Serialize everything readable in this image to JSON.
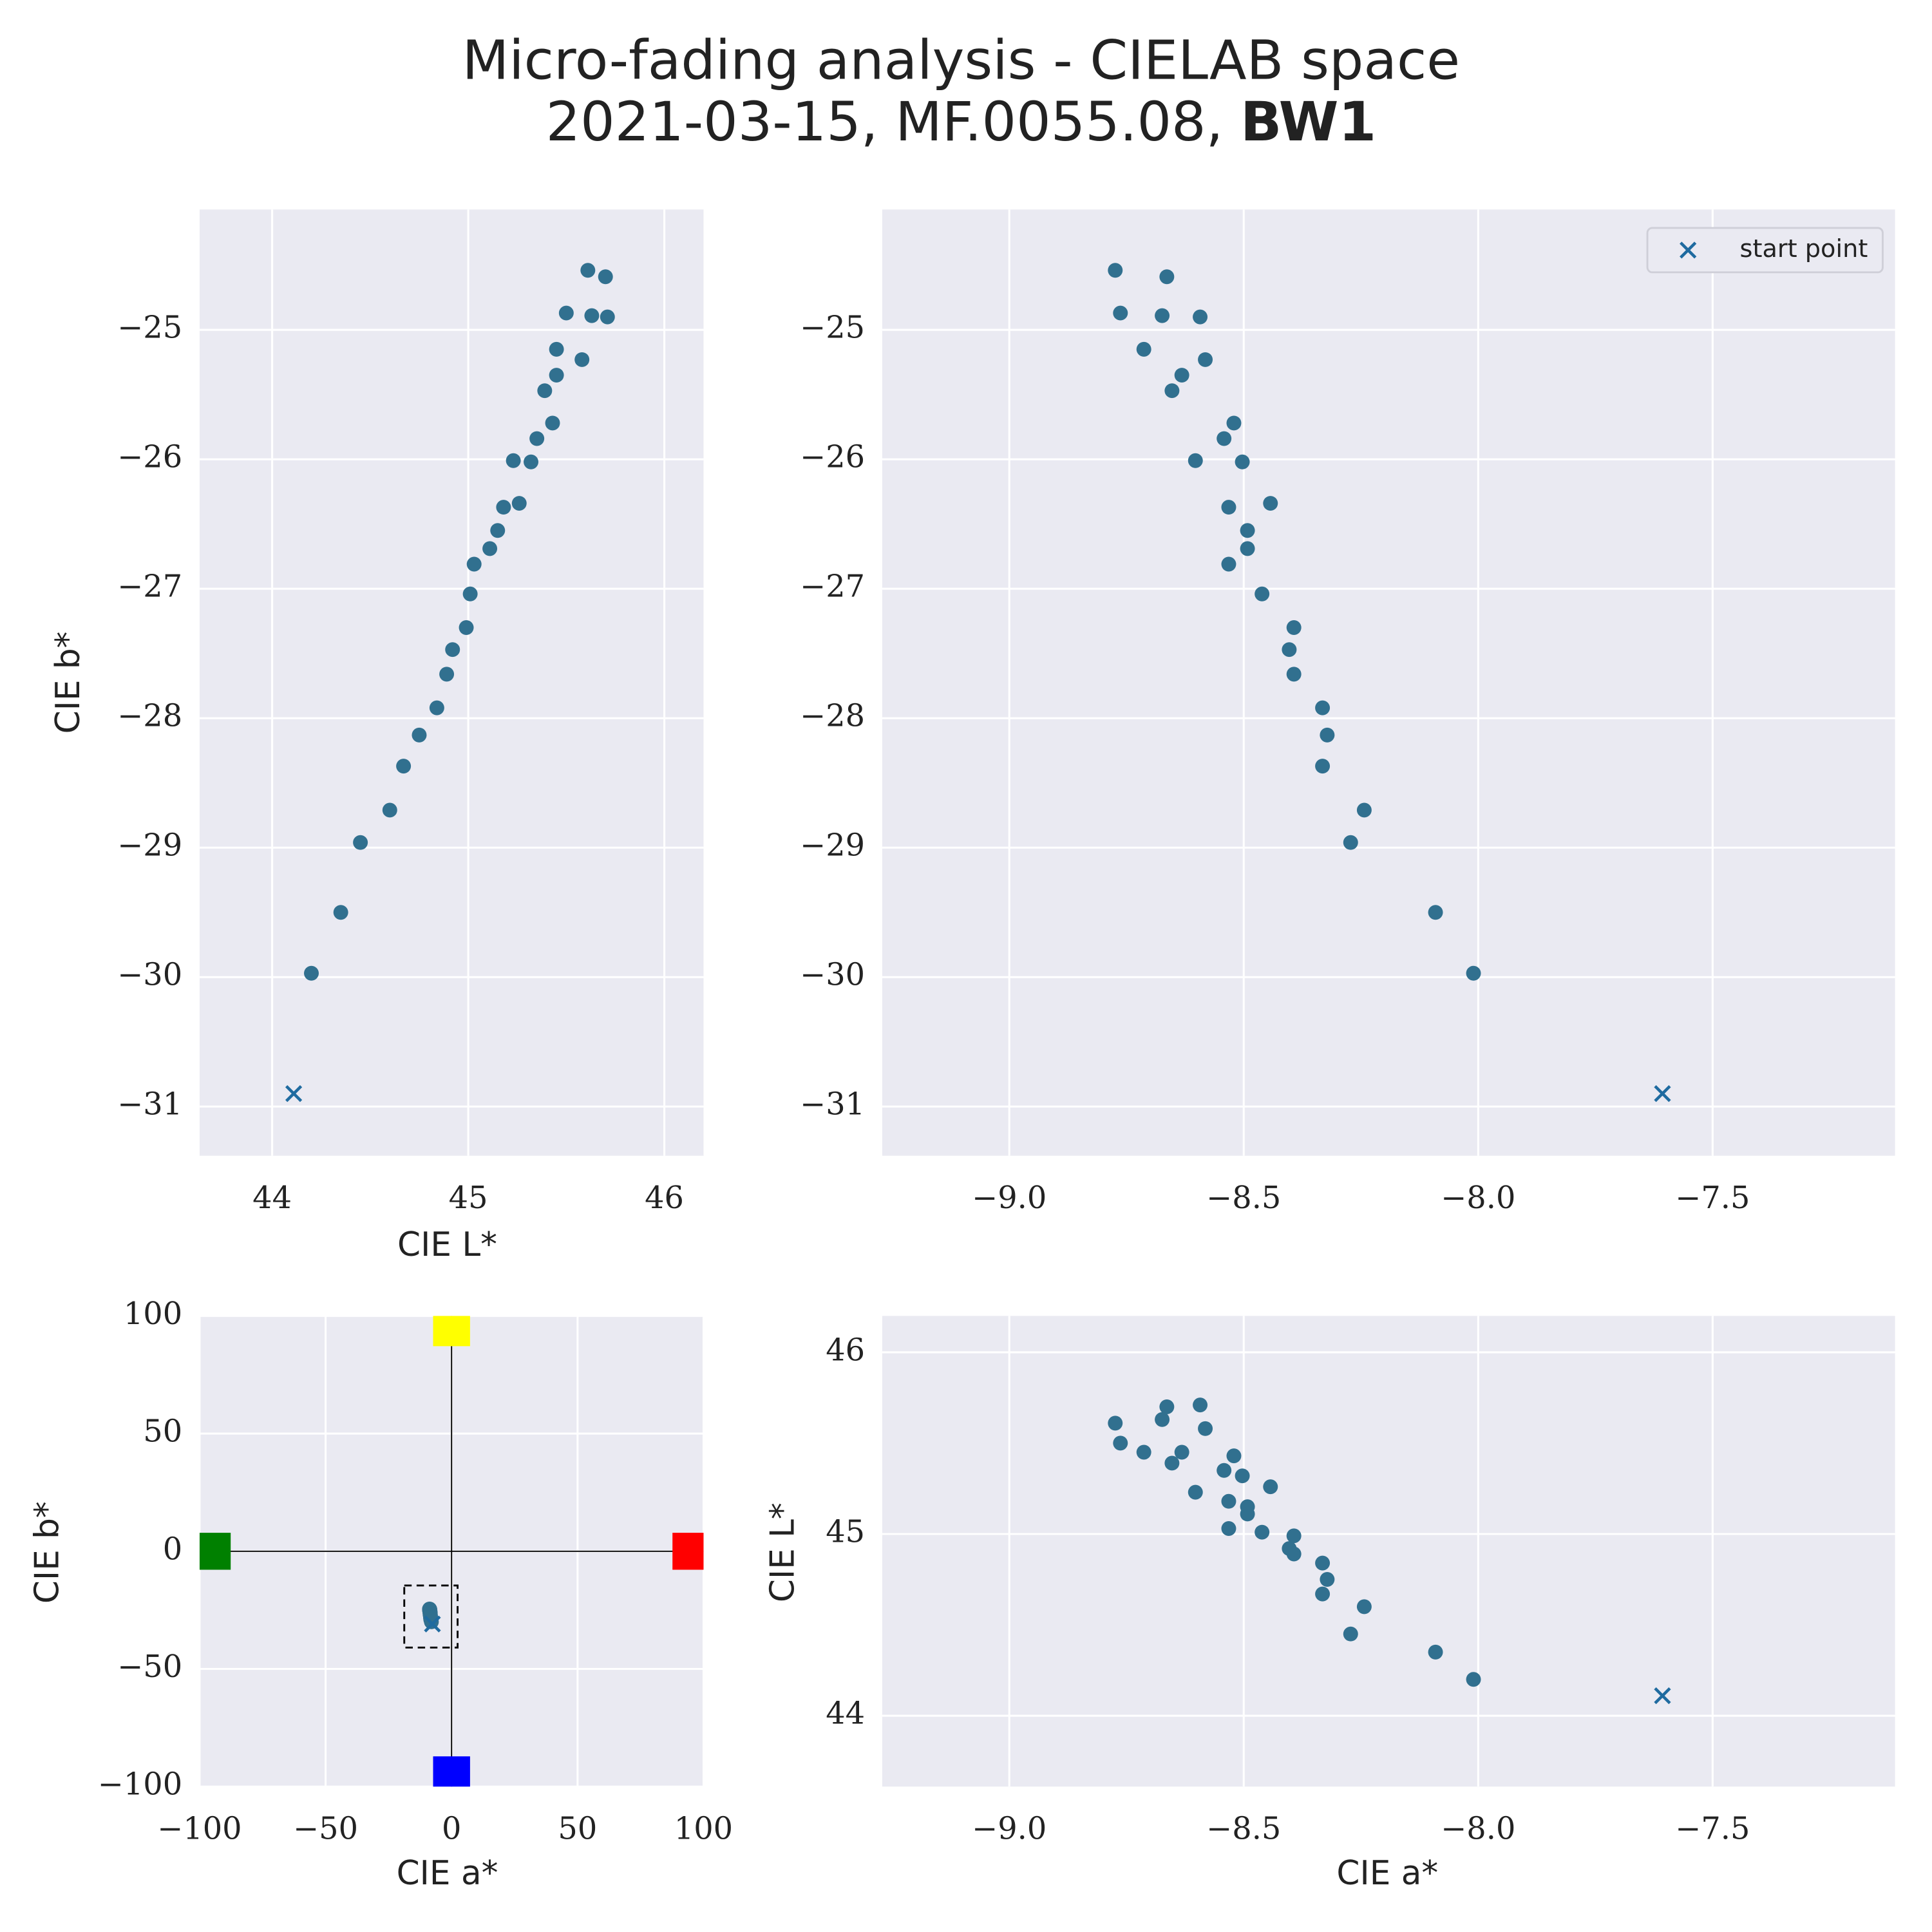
{
  "title": "Micro-fading analysis - CIELAB space",
  "subtitle": "2021-03-15, MF.0055.08,",
  "subtitle_bold": "BW1",
  "chart_data": [
    {
      "type": "scatter",
      "xlabel": "CIE L*",
      "ylabel": "CIE b*",
      "xlim": [
        43.63,
        46.2
      ],
      "ylim": [
        -31.38,
        -24.07
      ],
      "xticks": [
        44,
        45,
        46
      ],
      "yticks": [
        {
          "value": -31,
          "label": "−31"
        },
        {
          "value": -30,
          "label": "−30"
        },
        {
          "value": -29,
          "label": "−29"
        },
        {
          "value": -28,
          "label": "−28"
        },
        {
          "value": -27,
          "label": "−27"
        },
        {
          "value": -26,
          "label": "−26"
        },
        {
          "value": -25,
          "label": "−25"
        }
      ],
      "grid": true,
      "series": [
        {
          "marker": "o",
          "color": "#31708f",
          "x": [
            45.61,
            45.7,
            45.5,
            45.63,
            45.71,
            45.45,
            45.45,
            45.58,
            45.39,
            45.43,
            45.35,
            45.23,
            45.32,
            45.26,
            45.18,
            45.15,
            45.11,
            45.03,
            45.01,
            44.99,
            44.92,
            44.89,
            44.84,
            44.75,
            44.67,
            44.6,
            44.45,
            44.35,
            44.2
          ],
          "values": [
            -24.54,
            -24.59,
            -24.87,
            -24.89,
            -24.9,
            -25.15,
            -25.35,
            -25.23,
            -25.47,
            -25.72,
            -25.84,
            -26.01,
            -26.02,
            -26.34,
            -26.37,
            -26.55,
            -26.69,
            -26.81,
            -27.04,
            -27.3,
            -27.47,
            -27.66,
            -27.92,
            -28.13,
            -28.37,
            -28.71,
            -28.96,
            -29.5,
            -29.97
          ]
        },
        {
          "marker": "x",
          "color": "#1f6ba0",
          "x": [
            44.11
          ],
          "values": [
            -30.9
          ]
        }
      ]
    },
    {
      "type": "scatter",
      "xlim": [
        -9.271,
        -7.111
      ],
      "ylim": [
        -31.38,
        -24.07
      ],
      "xticks": [
        {
          "value": -9,
          "label": "−9.0"
        },
        {
          "value": -8.5,
          "label": "−8.5"
        },
        {
          "value": -8,
          "label": "−8.0"
        },
        {
          "value": -7.5,
          "label": "−7.5"
        }
      ],
      "yticks": [
        {
          "value": -31,
          "label": "−31"
        },
        {
          "value": -30,
          "label": "−30"
        },
        {
          "value": -29,
          "label": "−29"
        },
        {
          "value": -28,
          "label": "−28"
        },
        {
          "value": -27,
          "label": "−27"
        },
        {
          "value": -26,
          "label": "−26"
        },
        {
          "value": -25,
          "label": "−25"
        }
      ],
      "grid": true,
      "legend": "upper right",
      "series": [
        {
          "marker": "o",
          "color": "#31708f",
          "x": [
            -8.774,
            -8.664,
            -8.763,
            -8.674,
            -8.593,
            -8.713,
            -8.632,
            -8.582,
            -8.653,
            -8.521,
            -8.542,
            -8.603,
            -8.503,
            -8.443,
            -8.532,
            -8.492,
            -8.492,
            -8.532,
            -8.461,
            -8.393,
            -8.403,
            -8.393,
            -8.332,
            -8.322,
            -8.332,
            -8.243,
            -8.272,
            -8.091,
            -8.01
          ],
          "values": [
            -24.54,
            -24.59,
            -24.87,
            -24.89,
            -24.9,
            -25.15,
            -25.35,
            -25.23,
            -25.47,
            -25.72,
            -25.84,
            -26.01,
            -26.02,
            -26.34,
            -26.37,
            -26.55,
            -26.69,
            -26.81,
            -27.04,
            -27.3,
            -27.47,
            -27.66,
            -27.92,
            -28.13,
            -28.37,
            -28.71,
            -28.96,
            -29.5,
            -29.97
          ]
        },
        {
          "name": "start point",
          "marker": "x",
          "color": "#1f6ba0",
          "x": [
            -7.607
          ],
          "values": [
            -30.9
          ]
        }
      ]
    },
    {
      "type": "scatter",
      "xlabel": "CIE a*",
      "ylabel": "CIE b*",
      "xlim": [
        -100,
        100
      ],
      "ylim": [
        -100,
        100
      ],
      "xticks": [
        {
          "value": -100,
          "label": "−100"
        },
        {
          "value": -50,
          "label": "−50"
        },
        0,
        50,
        100
      ],
      "yticks": [
        {
          "value": -100,
          "label": "−100"
        },
        {
          "value": -50,
          "label": "−50"
        },
        0,
        50,
        100
      ],
      "grid": true,
      "crosshair": true,
      "zoom_box": true,
      "reference_colors": {
        "top": "#ffff00",
        "right": "#ff0000",
        "bottom": "#0000ff",
        "left": "#008000"
      },
      "series": [
        {
          "marker": "o",
          "color": "#31708f",
          "x": [
            -8.774,
            -8.664,
            -8.763,
            -8.674,
            -8.593,
            -8.713,
            -8.632,
            -8.582,
            -8.653,
            -8.521,
            -8.542,
            -8.603,
            -8.503,
            -8.443,
            -8.532,
            -8.492,
            -8.492,
            -8.532,
            -8.461,
            -8.393,
            -8.403,
            -8.393,
            -8.332,
            -8.322,
            -8.332,
            -8.243,
            -8.272,
            -8.091,
            -8.01
          ],
          "values": [
            -24.54,
            -24.59,
            -24.87,
            -24.89,
            -24.9,
            -25.15,
            -25.35,
            -25.23,
            -25.47,
            -25.72,
            -25.84,
            -26.01,
            -26.02,
            -26.34,
            -26.37,
            -26.55,
            -26.69,
            -26.81,
            -27.04,
            -27.3,
            -27.47,
            -27.66,
            -27.92,
            -28.13,
            -28.37,
            -28.71,
            -28.96,
            -29.5,
            -29.97
          ]
        },
        {
          "marker": "x",
          "color": "#1f6ba0",
          "x": [
            -7.607
          ],
          "values": [
            -30.9
          ]
        }
      ]
    },
    {
      "type": "scatter",
      "xlabel": "CIE a*",
      "ylabel": "CIE L*",
      "xlim": [
        -9.271,
        -7.111
      ],
      "ylim": [
        43.61,
        46.2
      ],
      "xticks": [
        {
          "value": -9,
          "label": "−9.0"
        },
        {
          "value": -8.5,
          "label": "−8.5"
        },
        {
          "value": -8,
          "label": "−8.0"
        },
        {
          "value": -7.5,
          "label": "−7.5"
        }
      ],
      "yticks": [
        44,
        45,
        46
      ],
      "grid": true,
      "series": [
        {
          "marker": "o",
          "color": "#31708f",
          "x": [
            -8.774,
            -8.664,
            -8.763,
            -8.674,
            -8.593,
            -8.713,
            -8.632,
            -8.582,
            -8.653,
            -8.521,
            -8.542,
            -8.603,
            -8.503,
            -8.443,
            -8.532,
            -8.492,
            -8.492,
            -8.532,
            -8.461,
            -8.393,
            -8.403,
            -8.393,
            -8.332,
            -8.322,
            -8.332,
            -8.243,
            -8.272,
            -8.091,
            -8.01
          ],
          "values": [
            45.61,
            45.7,
            45.5,
            45.63,
            45.71,
            45.45,
            45.45,
            45.58,
            45.39,
            45.43,
            45.35,
            45.23,
            45.32,
            45.26,
            45.18,
            45.15,
            45.11,
            45.03,
            45.01,
            44.99,
            44.92,
            44.89,
            44.84,
            44.75,
            44.67,
            44.6,
            44.45,
            44.35,
            44.2
          ]
        },
        {
          "marker": "x",
          "color": "#1f6ba0",
          "x": [
            -7.607
          ],
          "values": [
            44.11
          ]
        }
      ]
    }
  ]
}
